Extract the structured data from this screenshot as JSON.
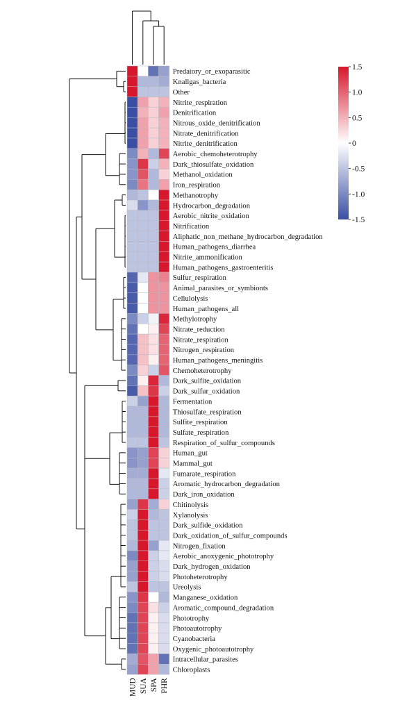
{
  "chart_data": {
    "type": "heatmap",
    "title": "",
    "columns": [
      "MUD",
      "SUA",
      "SPA",
      "PHR"
    ],
    "rows": [
      "Predatory_or_exoparasitic",
      "Knallgas_bacteria",
      "Other",
      "Nitrite_respiration",
      "Denitrification",
      "Nitrous_oxide_denitrification",
      "Nitrate_denitrification",
      "Nitrite_denitrification",
      "Aerobic_chemoheterotrophy",
      "Dark_thiosulfate_oxidation",
      "Methanol_oxidation",
      "Iron_respiration",
      "Methanotrophy",
      "Hydrocarbon_degradation",
      "Aerobic_nitrite_oxidation",
      "Nitrification",
      "Aliphatic_non_methane_hydrocarbon_degradation",
      "Human_pathogens_diarrhea",
      "Nitrite_ammonification",
      "Human_pathogens_gastroenteritis",
      "Sulfur_respiration",
      "Animal_parasites_or_symbionts",
      "Cellulolysis",
      "Human_pathogens_all",
      "Methylotrophy",
      "Nitrate_reduction",
      "Nitrate_respiration",
      "Nitrogen_respiration",
      "Human_pathogens_meningitis",
      "Chemoheterotrophy",
      "Dark_sulfite_oxidation",
      "Dark_sulfur_oxidation",
      "Fermentation",
      "Thiosulfate_respiration",
      "Sulfite_respiration",
      "Sulfate_respiration",
      "Respiration_of_sulfur_compounds",
      "Human_gut",
      "Mammal_gut",
      "Fumarate_respiration",
      "Aromatic_hydrocarbon_degradation",
      "Dark_iron_oxidation",
      "Chitinolysis",
      "Xylanolysis",
      "Dark_sulfide_oxidation",
      "Dark_oxidation_of_sulfur_compounds",
      "Nitrogen_fixation",
      "Aerobic_anoxygenic_phototrophy",
      "Dark_hydrogen_oxidation",
      "Photoheterotrophy",
      "Ureolysis",
      "Manganese_oxidation",
      "Aromatic_compound_degradation",
      "Phototrophy",
      "Photoautotrophy",
      "Cyanobacteria",
      "Oxygenic_photoautotrophy",
      "Intracellular_parasites",
      "Chloroplasts"
    ],
    "values": [
      [
        1.5,
        0.0,
        -1.2,
        -0.8
      ],
      [
        1.5,
        -0.6,
        -0.6,
        -0.7
      ],
      [
        1.5,
        -0.5,
        -0.5,
        -0.5
      ],
      [
        -1.5,
        0.6,
        0.3,
        0.5
      ],
      [
        -1.5,
        0.5,
        0.3,
        0.6
      ],
      [
        -1.5,
        0.6,
        0.3,
        0.5
      ],
      [
        -1.5,
        0.6,
        0.3,
        0.5
      ],
      [
        -1.5,
        0.6,
        0.3,
        0.5
      ],
      [
        -1.0,
        0.5,
        -0.6,
        1.2
      ],
      [
        -0.9,
        1.3,
        -0.4,
        0.5
      ],
      [
        -0.9,
        1.1,
        -0.6,
        0.3
      ],
      [
        -1.0,
        0.9,
        -0.6,
        0.6
      ],
      [
        -0.6,
        -0.5,
        0.0,
        1.5
      ],
      [
        -0.3,
        -0.9,
        -0.6,
        1.5
      ],
      [
        -0.5,
        -0.5,
        -0.5,
        1.5
      ],
      [
        -0.5,
        -0.5,
        -0.5,
        1.5
      ],
      [
        -0.5,
        -0.5,
        -0.5,
        1.5
      ],
      [
        -0.5,
        -0.5,
        -0.5,
        1.5
      ],
      [
        -0.5,
        -0.5,
        -0.5,
        1.5
      ],
      [
        -0.5,
        -0.5,
        -0.5,
        1.5
      ],
      [
        -1.3,
        -0.2,
        0.7,
        0.8
      ],
      [
        -1.4,
        0.0,
        0.7,
        0.7
      ],
      [
        -1.4,
        0.0,
        0.7,
        0.7
      ],
      [
        -1.4,
        0.0,
        0.7,
        0.7
      ],
      [
        -1.0,
        -0.4,
        -0.1,
        1.4
      ],
      [
        -1.2,
        0.0,
        0.1,
        1.2
      ],
      [
        -1.3,
        0.4,
        0.2,
        1.0
      ],
      [
        -1.3,
        0.4,
        0.2,
        1.0
      ],
      [
        -1.3,
        0.4,
        0.1,
        1.0
      ],
      [
        -1.0,
        0.3,
        -0.4,
        1.1
      ],
      [
        -1.2,
        0.1,
        1.4,
        -0.6
      ],
      [
        -1.4,
        0.4,
        1.3,
        -0.4
      ],
      [
        -0.4,
        -0.8,
        1.5,
        -0.6
      ],
      [
        -0.6,
        -0.6,
        1.5,
        -0.6
      ],
      [
        -0.6,
        -0.6,
        1.5,
        -0.6
      ],
      [
        -0.6,
        -0.6,
        1.5,
        -0.6
      ],
      [
        -0.5,
        -0.5,
        1.5,
        -0.5
      ],
      [
        -0.9,
        -0.8,
        1.2,
        0.3
      ],
      [
        -0.9,
        -0.8,
        1.2,
        0.3
      ],
      [
        -0.7,
        -0.7,
        1.5,
        -0.2
      ],
      [
        -0.6,
        -0.6,
        1.5,
        -0.4
      ],
      [
        -0.6,
        -0.6,
        1.5,
        -0.4
      ],
      [
        -0.8,
        1.3,
        -0.7,
        0.3
      ],
      [
        -0.4,
        1.5,
        -0.6,
        -0.5
      ],
      [
        -0.5,
        1.5,
        -0.5,
        -0.5
      ],
      [
        -0.5,
        1.5,
        -0.5,
        -0.5
      ],
      [
        -0.6,
        1.5,
        -0.8,
        -0.2
      ],
      [
        -1.0,
        1.5,
        -0.4,
        -0.2
      ],
      [
        -0.8,
        1.5,
        -0.4,
        -0.3
      ],
      [
        -0.8,
        1.5,
        -0.4,
        -0.3
      ],
      [
        -0.5,
        1.5,
        -0.5,
        -0.5
      ],
      [
        -0.9,
        1.3,
        0.0,
        -0.6
      ],
      [
        -1.0,
        1.2,
        0.2,
        -0.4
      ],
      [
        -1.2,
        1.2,
        0.1,
        -0.3
      ],
      [
        -1.2,
        1.2,
        0.1,
        -0.3
      ],
      [
        -1.2,
        1.2,
        0.1,
        -0.3
      ],
      [
        -1.2,
        1.2,
        0.1,
        -0.3
      ],
      [
        -0.7,
        1.1,
        0.6,
        -1.2
      ],
      [
        -0.8,
        1.2,
        0.6,
        -0.6
      ]
    ],
    "scale": {
      "min": -1.5,
      "max": 1.5,
      "colors": {
        "low": "#3a4fa3",
        "mid": "#ffffff",
        "high": "#d7172c"
      },
      "ticks": [
        "1.5",
        "1.0",
        "0.5",
        "0",
        "-0.5",
        "-1.0",
        "-1.5"
      ],
      "placement": "top-right"
    },
    "grid_color": "#b8b8c4"
  }
}
